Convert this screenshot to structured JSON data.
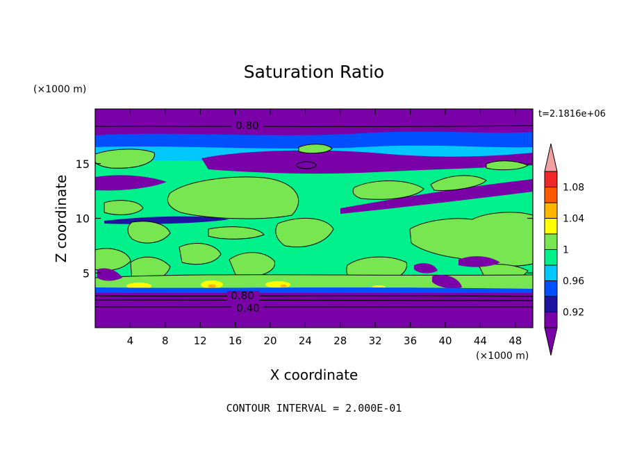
{
  "chart_data": {
    "type": "heatmap",
    "title": "Saturation Ratio",
    "xlabel": "X coordinate",
    "ylabel": "Z coordinate",
    "x_units": "(×1000 m)",
    "y_units": "(×1000 m)",
    "time_label": "t=2.1816e+06",
    "footer": "CONTOUR INTERVAL = 2.000E-01",
    "xlim": [
      0,
      50
    ],
    "ylim": [
      0,
      20
    ],
    "x_ticks": [
      4,
      8,
      12,
      16,
      20,
      24,
      28,
      32,
      36,
      40,
      44,
      48
    ],
    "y_ticks": [
      5,
      10,
      15
    ],
    "contour_labels": [
      {
        "text": "0.80",
        "x": 16.5,
        "z": 18.2
      },
      {
        "text": "0.80",
        "x": 16.5,
        "z": 3.0
      },
      {
        "text": "0.40",
        "x": 17.0,
        "z": 1.7
      }
    ],
    "colorbar": {
      "levels": [
        0.9,
        0.92,
        0.94,
        0.96,
        0.98,
        1.0,
        1.02,
        1.04,
        1.06,
        1.08,
        1.1
      ],
      "colors": [
        "#7a00a8",
        "#1e14a0",
        "#0050ff",
        "#00c8ff",
        "#00f08c",
        "#78e650",
        "#ffff00",
        "#ffb400",
        "#ff5a00",
        "#f02828"
      ],
      "over_color": "#f0a0a0",
      "under_color": "#7a00a8",
      "labels": [
        "0.92",
        "0.96",
        "1",
        "1.04",
        "1.08"
      ]
    },
    "layers": [
      {
        "z": [
          0.0,
          3.4
        ],
        "value": 0.7,
        "class": "< 0.92"
      },
      {
        "z": [
          3.4,
          4.5
        ],
        "value": 1.02,
        "class": "1 - 1.02"
      },
      {
        "z": [
          4.5,
          16.0
        ],
        "value": 0.99,
        "class": "0.98 - 1"
      },
      {
        "z": [
          16.0,
          18.0
        ],
        "value": 0.95,
        "class": "0.94 - 0.98"
      },
      {
        "z": [
          18.0,
          20.0
        ],
        "value": 0.8,
        "class": "< 0.92"
      }
    ]
  }
}
